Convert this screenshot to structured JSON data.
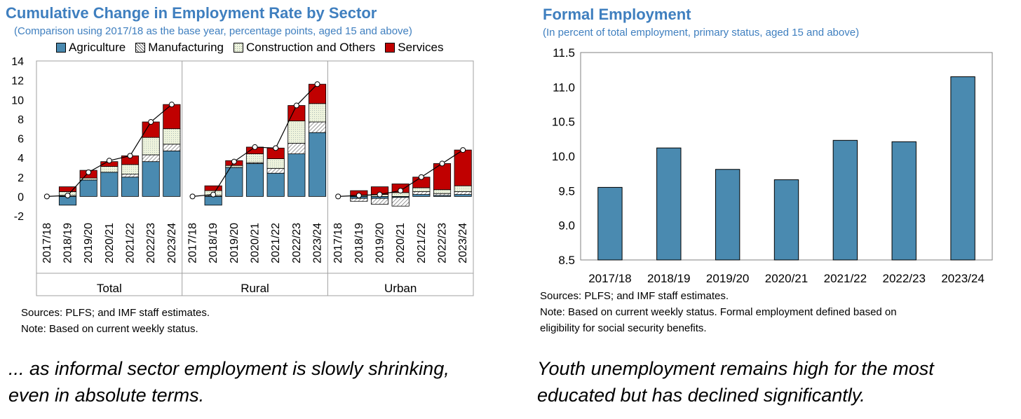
{
  "colors": {
    "agriculture": "#4a8ab0",
    "construction": "#eef3dc",
    "services": "#c00000",
    "title": "#3f7fbf",
    "formal_bar": "#4a8ab0"
  },
  "left": {
    "title": "Cumulative Change in Employment Rate by Sector",
    "subtitle": "(Comparison using 2017/18 as the base year, percentage points, aged 15 and above)",
    "sources": "Sources: PLFS; and IMF staff estimates.",
    "note": "Note: Based on current weekly status.",
    "caption_line1": "... as informal sector employment is slowly shrinking,",
    "caption_line2": "even in absolute terms."
  },
  "right": {
    "title": "Formal Employment",
    "subtitle": "(In percent of total employment, primary status, aged 15 and above)",
    "sources": "Sources: PLFS; and IMF staff estimates.",
    "note_line1": "Note: Based on current weekly status. Formal employment defined based on",
    "note_line2": "eligibility for social security benefits.",
    "caption_line1": "Youth unemployment remains high for the most",
    "caption_line2": "educated but has declined significantly."
  },
  "chart_data": [
    {
      "type": "bar",
      "stacked": true,
      "title": "Cumulative Change in Employment Rate by Sector",
      "subtitle": "(Comparison using 2017/18 as the base year, percentage points, aged 15 and above)",
      "categories": [
        "2017/18",
        "2018/19",
        "2019/20",
        "2020/21",
        "2021/22",
        "2022/23",
        "2023/24"
      ],
      "groups": [
        "Total",
        "Rural",
        "Urban"
      ],
      "ylim": [
        -2,
        14
      ],
      "yticks": [
        -2,
        0,
        2,
        4,
        6,
        8,
        10,
        12,
        14
      ],
      "legend_position": "top",
      "series": [
        {
          "name": "Agriculture",
          "pattern": "solid",
          "color": "#4a8ab0",
          "values": {
            "Total": [
              0,
              -0.9,
              1.7,
              2.5,
              2.0,
              3.6,
              4.7
            ],
            "Rural": [
              0,
              -0.9,
              3.0,
              3.4,
              2.4,
              4.4,
              6.6
            ],
            "Urban": [
              0,
              -0.2,
              -0.2,
              -0.1,
              0.2,
              0.1,
              0.2
            ]
          }
        },
        {
          "name": "Manufacturing",
          "pattern": "hatch",
          "color": "#ffffff",
          "values": {
            "Total": [
              0,
              0.1,
              0.0,
              0.0,
              0.3,
              0.7,
              0.7
            ],
            "Rural": [
              0,
              0.1,
              0.0,
              0.1,
              0.5,
              1.1,
              1.1
            ],
            "Urban": [
              0,
              -0.3,
              -0.6,
              -0.9,
              0.3,
              0.2,
              0.3
            ]
          }
        },
        {
          "name": "Construction and Others",
          "pattern": "dotted",
          "color": "#eef3dc",
          "values": {
            "Total": [
              0,
              0.4,
              0.2,
              0.6,
              1.0,
              1.8,
              1.6
            ],
            "Rural": [
              0,
              0.5,
              0.2,
              0.9,
              1.0,
              2.3,
              1.9
            ],
            "Urban": [
              0,
              0.1,
              0.2,
              0.4,
              0.4,
              0.4,
              0.6
            ]
          }
        },
        {
          "name": "Services",
          "pattern": "solid",
          "color": "#c00000",
          "values": {
            "Total": [
              0,
              0.5,
              0.8,
              0.5,
              0.9,
              1.6,
              2.5
            ],
            "Rural": [
              0,
              0.5,
              0.5,
              0.7,
              1.1,
              1.6,
              2.0
            ],
            "Urban": [
              0,
              0.5,
              0.8,
              0.9,
              1.1,
              2.7,
              3.7
            ]
          }
        }
      ],
      "total_line": {
        "Total": [
          0,
          0.1,
          2.5,
          3.7,
          4.2,
          7.7,
          9.5
        ],
        "Rural": [
          0,
          0.2,
          3.6,
          5.1,
          5.0,
          9.4,
          11.6
        ],
        "Urban": [
          0,
          0.1,
          0.2,
          0.6,
          2.0,
          3.4,
          4.8
        ]
      }
    },
    {
      "type": "bar",
      "title": "Formal Employment",
      "subtitle": "(In percent of total employment, primary status, aged 15 and above)",
      "categories": [
        "2017/18",
        "2018/19",
        "2019/20",
        "2020/21",
        "2021/22",
        "2022/23",
        "2023/24"
      ],
      "values": [
        9.55,
        10.12,
        9.81,
        9.66,
        10.23,
        10.21,
        11.15
      ],
      "ylim": [
        8.5,
        11.5
      ],
      "yticks": [
        "8.5",
        "9.0",
        "9.5",
        "10.0",
        "10.5",
        "11.0",
        "11.5"
      ],
      "grid": false
    }
  ]
}
